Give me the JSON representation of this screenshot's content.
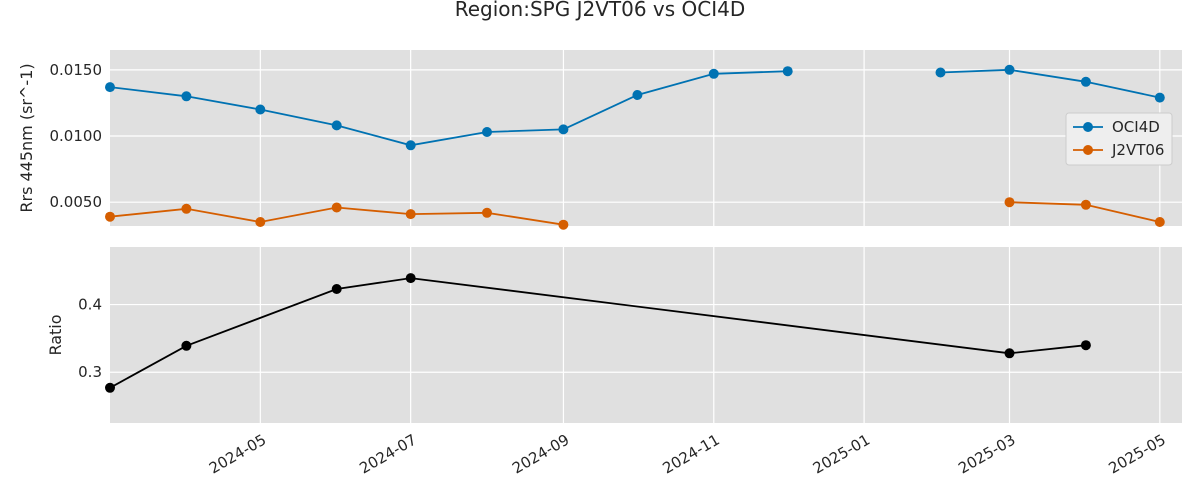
{
  "chart_data": {
    "type": "line",
    "title": "Region:SPG J2VT06 vs OCI4D",
    "x_date_range": [
      "2024-03-01",
      "2025-05-10"
    ],
    "x_ticks": [
      "2024-05",
      "2024-07",
      "2024-09",
      "2024-11",
      "2025-01",
      "2025-03",
      "2025-05"
    ],
    "grid": true,
    "panels": [
      {
        "ylabel": "Rrs 445nm (sr^-1)",
        "ylim": [
          0.0032,
          0.0165
        ],
        "y_ticks": [
          "0.0050",
          "0.0100",
          "0.0150"
        ],
        "legend_position": "right",
        "series": [
          {
            "name": "OCI4D",
            "color": "#0072b2",
            "points": [
              [
                "2024-03-01",
                0.0137
              ],
              [
                "2024-04-01",
                0.013
              ],
              [
                "2024-05-01",
                0.012
              ],
              [
                "2024-06-01",
                0.0108
              ],
              [
                "2024-07-01",
                0.0093
              ],
              [
                "2024-08-01",
                0.0103
              ],
              [
                "2024-09-01",
                0.0105
              ],
              [
                "2024-10-01",
                0.0131
              ],
              [
                "2024-11-01",
                0.0147
              ],
              [
                "2024-12-01",
                0.0149
              ],
              null,
              [
                "2025-02-01",
                0.0148
              ],
              [
                "2025-03-01",
                0.015
              ],
              [
                "2025-04-01",
                0.0141
              ],
              [
                "2025-05-01",
                0.0129
              ]
            ]
          },
          {
            "name": "J2VT06",
            "color": "#d55e00",
            "points": [
              [
                "2024-03-01",
                0.0039
              ],
              [
                "2024-04-01",
                0.0045
              ],
              [
                "2024-05-01",
                0.0035
              ],
              [
                "2024-06-01",
                0.0046
              ],
              [
                "2024-07-01",
                0.0041
              ],
              [
                "2024-08-01",
                0.0042
              ],
              [
                "2024-09-01",
                0.0033
              ],
              null,
              [
                "2025-03-01",
                0.005
              ],
              [
                "2025-04-01",
                0.0048
              ],
              [
                "2025-05-01",
                0.0035
              ]
            ]
          }
        ]
      },
      {
        "ylabel": "Ratio",
        "ylim": [
          0.225,
          0.485
        ],
        "y_ticks": [
          "0.3",
          "0.4"
        ],
        "series": [
          {
            "name": "",
            "color": "#000000",
            "points": [
              [
                "2024-03-01",
                0.277
              ],
              [
                "2024-04-01",
                0.339
              ],
              [
                "2024-06-01",
                0.423
              ],
              [
                "2024-07-01",
                0.439
              ],
              [
                "2025-03-01",
                0.328
              ],
              [
                "2025-04-01",
                0.34
              ]
            ]
          }
        ]
      }
    ]
  }
}
